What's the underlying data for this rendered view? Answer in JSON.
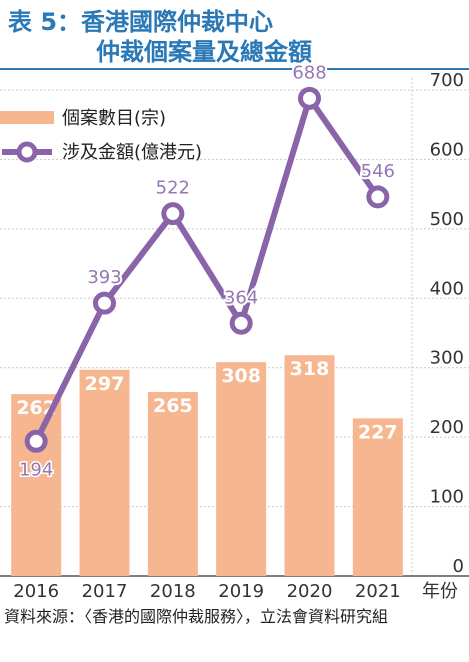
{
  "title": {
    "line1": "表 5：香港國際仲裁中心",
    "line2": "仲裁個案量及總金額"
  },
  "source_text": "資料來源：〈香港的國際仲裁服務〉，立法會資料研究組",
  "colors": {
    "title": "#2a78b6",
    "bar": "#f6b690",
    "line": "#8a64a8",
    "line_label": "#9478b4",
    "grid": "#c9c9c9",
    "axis_text": "#333333"
  },
  "chart_data": {
    "type": "bar",
    "categories": [
      "2016",
      "2017",
      "2018",
      "2019",
      "2020",
      "2021"
    ],
    "x_unit_label": "年份",
    "series": [
      {
        "name": "個案數目(宗)",
        "type": "bar",
        "values": [
          262,
          297,
          265,
          308,
          318,
          227
        ]
      },
      {
        "name": "涉及金額(億港元)",
        "type": "line",
        "values": [
          194,
          393,
          522,
          364,
          688,
          546
        ]
      }
    ],
    "y_ticks": [
      "0",
      "100",
      "200",
      "300",
      "400",
      "500",
      "600",
      "700"
    ],
    "ylim": [
      0,
      700
    ],
    "y_axis_side": "right",
    "grid": "horizontal-dashed",
    "legend_position": "top-left"
  }
}
